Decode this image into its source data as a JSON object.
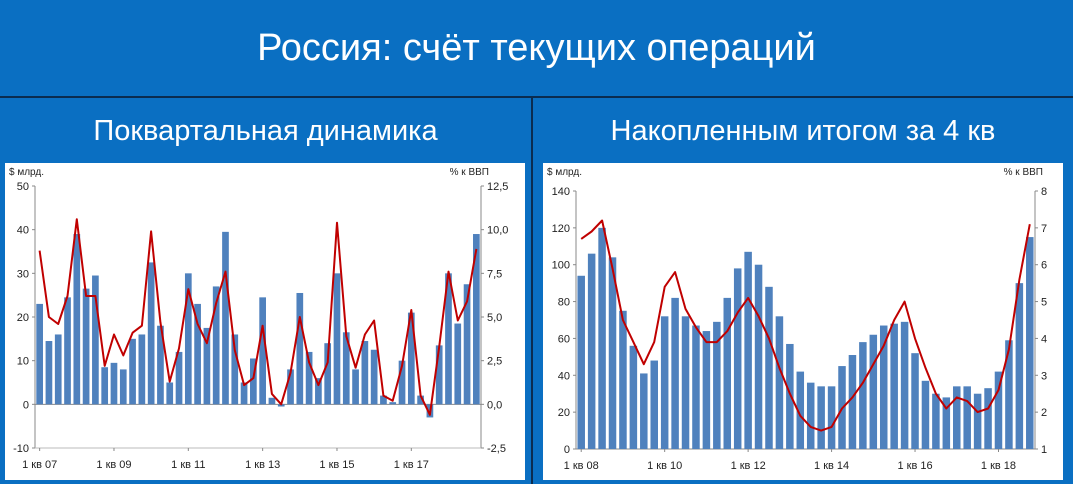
{
  "title": "Россия: счёт текущих операций",
  "panels": [
    {
      "subtitle": "Поквартальная динамика"
    },
    {
      "subtitle": "Накопленным итогом за 4 кв"
    }
  ],
  "colors": {
    "background": "#0a6fc2",
    "bars": "#4f81bd",
    "line": "#c00000"
  },
  "chart_data": [
    {
      "type": "bar",
      "combo": "bar + line (secondary axis)",
      "title": "Поквартальная динамика",
      "left_unit": "$ млрд.",
      "right_unit": "% к ВВП",
      "ylim": [
        -10,
        50
      ],
      "y_ticks": [
        "50",
        "40",
        "30",
        "20",
        "10",
        "0",
        "-10"
      ],
      "y2lim": [
        -2.5,
        12.5
      ],
      "y2_ticks": [
        "12,5",
        "10,0",
        "7,5",
        "5,0",
        "2,5",
        "0,0",
        "-2,5"
      ],
      "x_tick_labels": [
        "1 кв 07",
        "1 кв 09",
        "1 кв 11",
        "1 кв 13",
        "1 кв 15",
        "1 кв 17"
      ],
      "x_tick_index": [
        0,
        8,
        16,
        24,
        32,
        40
      ],
      "series": [
        {
          "kind": "bar",
          "axis": "left",
          "values": [
            23,
            14.5,
            16,
            24.5,
            39,
            26.5,
            29.5,
            8.5,
            9.5,
            8,
            15,
            16,
            32.5,
            18,
            5,
            12,
            30,
            23,
            17.5,
            27,
            39.5,
            16,
            5,
            10.5,
            24.5,
            1.5,
            -0.5,
            8,
            25.5,
            12,
            6,
            14,
            30,
            16.5,
            8,
            14.5,
            12.5,
            2,
            0.5,
            10,
            21,
            2,
            -3,
            13.5,
            30,
            18.5,
            27.5,
            39
          ]
        },
        {
          "kind": "line",
          "axis": "right",
          "values": [
            8.8,
            5,
            4.6,
            6.2,
            10.6,
            6.2,
            6.2,
            2.2,
            4,
            2.8,
            4.1,
            4.5,
            9.9,
            4.7,
            1.3,
            3.2,
            6.6,
            4.6,
            3.5,
            5.8,
            7.6,
            3.1,
            1.1,
            1.5,
            4.5,
            0.6,
            0,
            1.8,
            5,
            2.4,
            1.1,
            2.4,
            10.4,
            3.9,
            2.1,
            4,
            4.8,
            0.5,
            0.2,
            2.2,
            5.4,
            0.5,
            -0.6,
            3.3,
            7.6,
            4.8,
            5.9,
            8.9
          ]
        }
      ]
    },
    {
      "type": "bar",
      "combo": "bar + line (secondary axis)",
      "title": "Накопленным итогом за 4 кв",
      "left_unit": "$ млрд.",
      "right_unit": "% к ВВП",
      "ylim": [
        0,
        140
      ],
      "y_ticks": [
        "140",
        "120",
        "100",
        "80",
        "60",
        "40",
        "20",
        "0"
      ],
      "y2lim": [
        1,
        8
      ],
      "y2_ticks": [
        "8",
        "7",
        "6",
        "5",
        "4",
        "3",
        "2",
        "1"
      ],
      "x_tick_labels": [
        "1 кв 08",
        "1 кв 10",
        "1 кв 12",
        "1 кв 14",
        "1 кв 16",
        "1 кв 18"
      ],
      "x_tick_index": [
        0,
        8,
        16,
        24,
        32,
        40
      ],
      "series": [
        {
          "kind": "bar",
          "axis": "left",
          "values": [
            94,
            106,
            120,
            104,
            75,
            56,
            41,
            48,
            72,
            82,
            72,
            67,
            64,
            69,
            82,
            98,
            107,
            100,
            88,
            72,
            57,
            42,
            36,
            34,
            34,
            45,
            51,
            58,
            62,
            67,
            68,
            69,
            52,
            37,
            30,
            28,
            34,
            34,
            30,
            33,
            42,
            59,
            90,
            115
          ]
        },
        {
          "kind": "line",
          "axis": "right",
          "values": [
            6.7,
            6.9,
            7.2,
            5.9,
            4.5,
            3.9,
            3.3,
            3.9,
            5.4,
            5.8,
            4.8,
            4.3,
            3.9,
            3.9,
            4.2,
            4.7,
            5.1,
            4.6,
            4,
            3.2,
            2.5,
            1.9,
            1.6,
            1.5,
            1.6,
            2.1,
            2.4,
            2.8,
            3.3,
            3.8,
            4.5,
            5,
            4,
            3.2,
            2.5,
            2.1,
            2.4,
            2.3,
            2,
            2.1,
            2.6,
            3.7,
            5.6,
            7.1
          ]
        }
      ]
    }
  ]
}
